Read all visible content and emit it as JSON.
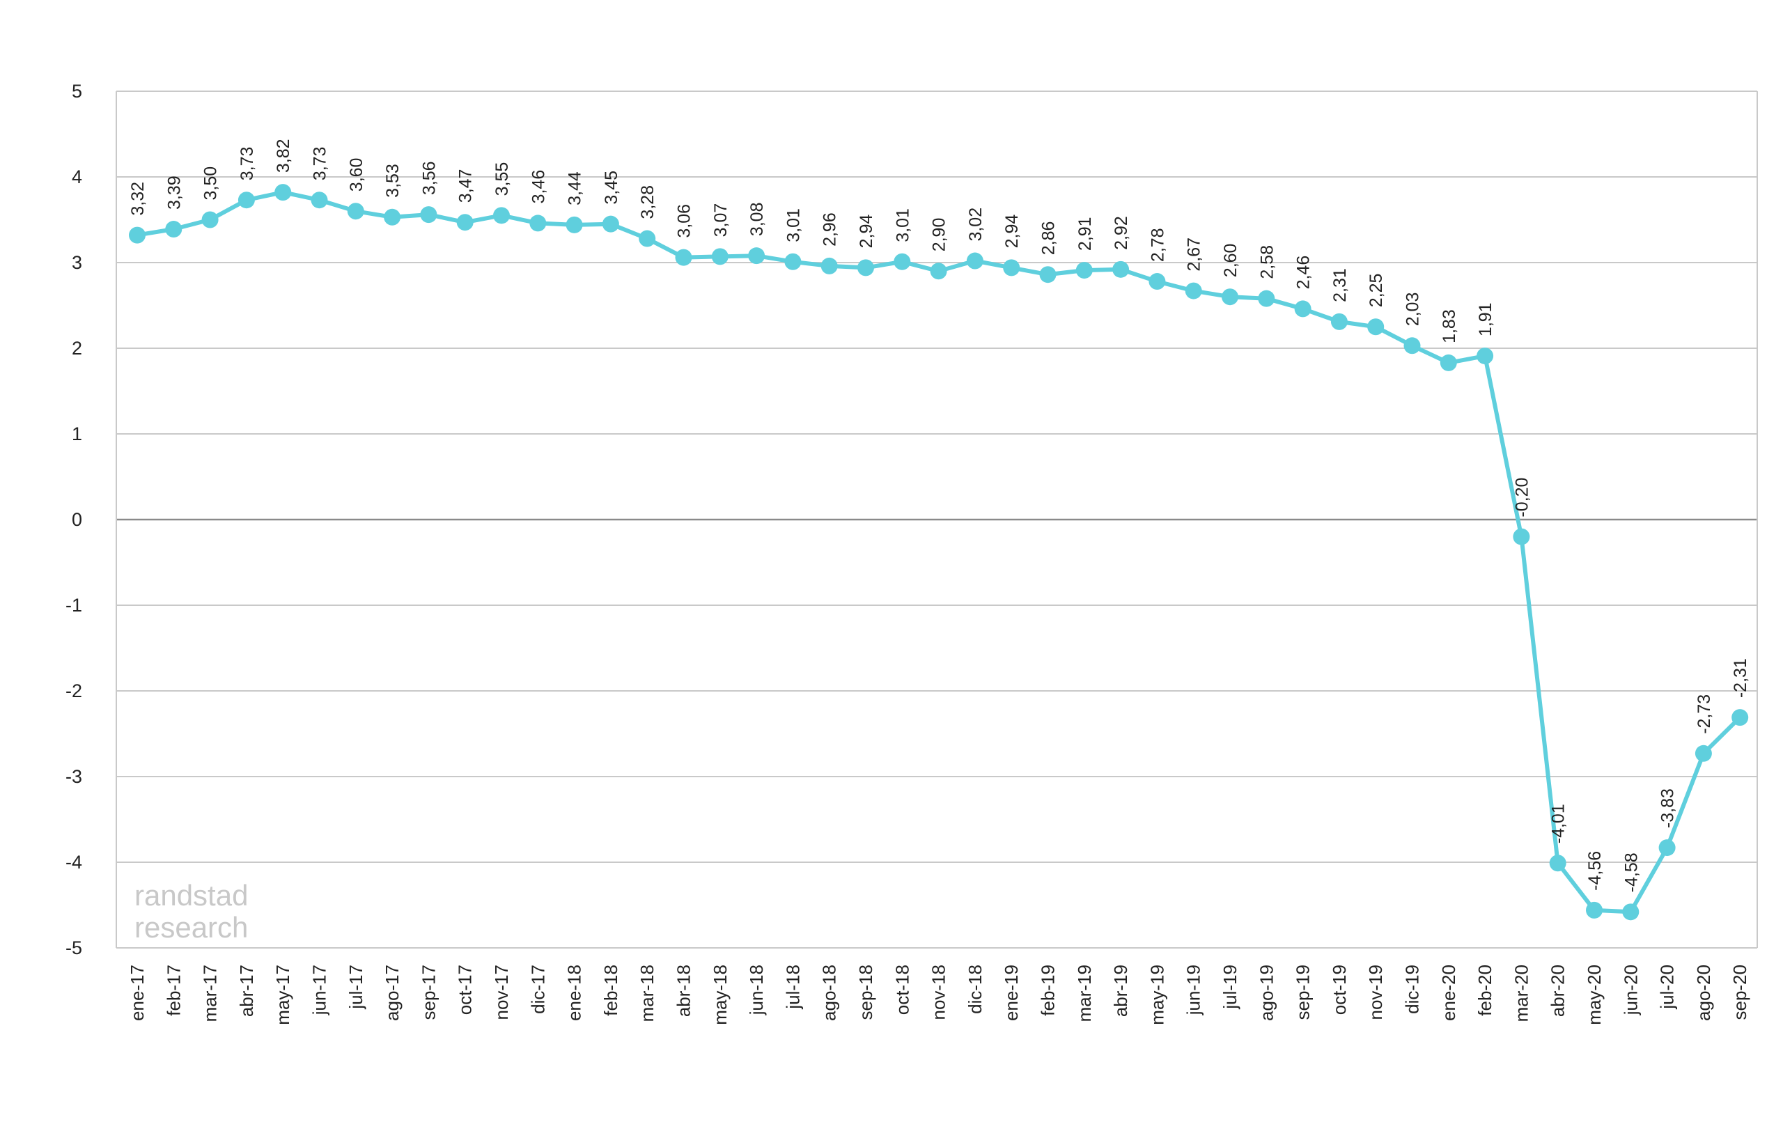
{
  "chart_data": {
    "type": "line",
    "title": "",
    "xlabel": "",
    "ylabel": "",
    "ylim": [
      -5,
      5
    ],
    "yticks": [
      5,
      4,
      3,
      2,
      1,
      0,
      -1,
      -2,
      -3,
      -4,
      -5
    ],
    "grid": true,
    "legend": "none",
    "line_color": "#5fcfdd",
    "categories": [
      "ene-17",
      "feb-17",
      "mar-17",
      "abr-17",
      "may-17",
      "jun-17",
      "jul-17",
      "ago-17",
      "sep-17",
      "oct-17",
      "nov-17",
      "dic-17",
      "ene-18",
      "feb-18",
      "mar-18",
      "abr-18",
      "may-18",
      "jun-18",
      "jul-18",
      "ago-18",
      "sep-18",
      "oct-18",
      "nov-18",
      "dic-18",
      "ene-19",
      "feb-19",
      "mar-19",
      "abr-19",
      "may-19",
      "jun-19",
      "jul-19",
      "ago-19",
      "sep-19",
      "oct-19",
      "nov-19",
      "dic-19",
      "ene-20",
      "feb-20",
      "mar-20",
      "abr-20",
      "may-20",
      "jun-20",
      "jul-20",
      "ago-20",
      "sep-20"
    ],
    "values": [
      3.32,
      3.39,
      3.5,
      3.73,
      3.82,
      3.73,
      3.6,
      3.53,
      3.56,
      3.47,
      3.55,
      3.46,
      3.44,
      3.45,
      3.28,
      3.06,
      3.07,
      3.08,
      3.01,
      2.96,
      2.94,
      3.01,
      2.9,
      3.02,
      2.94,
      2.86,
      2.91,
      2.92,
      2.78,
      2.67,
      2.6,
      2.58,
      2.46,
      2.31,
      2.25,
      2.03,
      1.83,
      1.91,
      -0.2,
      -4.01,
      -4.56,
      -4.58,
      -3.83,
      -2.73,
      -2.31
    ],
    "data_labels": [
      "3,32",
      "3,39",
      "3,50",
      "3,73",
      "3,82",
      "3,73",
      "3,60",
      "3,53",
      "3,56",
      "3,47",
      "3,55",
      "3,46",
      "3,44",
      "3,45",
      "3,28",
      "3,06",
      "3,07",
      "3,08",
      "3,01",
      "2,96",
      "2,94",
      "3,01",
      "2,90",
      "3,02",
      "2,94",
      "2,86",
      "2,91",
      "2,92",
      "2,78",
      "2,67",
      "2,60",
      "2,58",
      "2,46",
      "2,31",
      "2,25",
      "2,03",
      "1,83",
      "1,91",
      "-0,20",
      "-4,01",
      "-4,56",
      "-4,58",
      "-3,83",
      "-2,73",
      "-2,31"
    ]
  },
  "watermark": {
    "line1": "randstad",
    "line2": "research"
  }
}
